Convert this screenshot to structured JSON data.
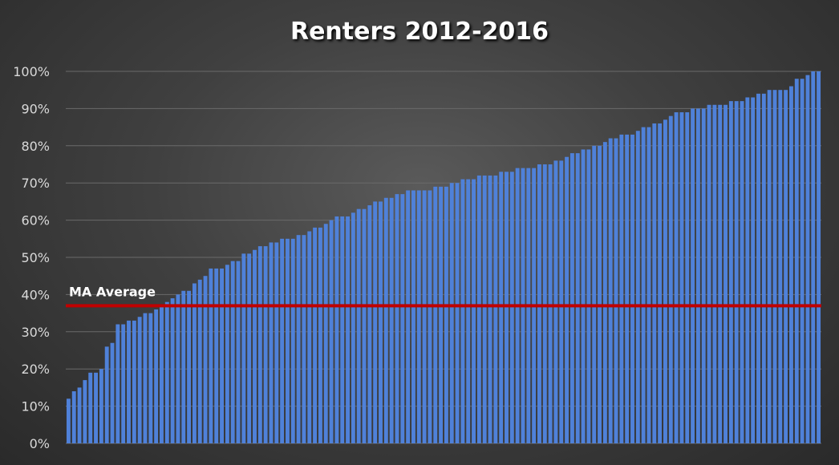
{
  "colors": {
    "bar": "#4f81d9",
    "bar_edge": "#3a66b3",
    "average_line": "#c00000",
    "grid": "#6a6a6a",
    "text": "#d9d9d9"
  },
  "chart_data": {
    "type": "bar",
    "title": "Renters 2012-2016",
    "xlabel": "",
    "ylabel": "",
    "ylim": [
      0,
      100
    ],
    "y_ticks": [
      0,
      10,
      20,
      30,
      40,
      50,
      60,
      70,
      80,
      90,
      100
    ],
    "y_tick_labels": [
      "0%",
      "10%",
      "20%",
      "30%",
      "40%",
      "50%",
      "60%",
      "70%",
      "80%",
      "90%",
      "100%"
    ],
    "grid": true,
    "values": [
      12,
      14,
      15,
      17,
      19,
      19,
      20,
      26,
      27,
      32,
      32,
      33,
      33,
      34,
      35,
      35,
      36,
      37,
      38,
      39,
      40,
      41,
      41,
      43,
      44,
      45,
      47,
      47,
      47,
      48,
      49,
      49,
      51,
      51,
      52,
      53,
      53,
      54,
      54,
      55,
      55,
      55,
      56,
      56,
      57,
      58,
      58,
      59,
      60,
      61,
      61,
      61,
      62,
      63,
      63,
      64,
      65,
      65,
      66,
      66,
      67,
      67,
      68,
      68,
      68,
      68,
      68,
      69,
      69,
      69,
      70,
      70,
      71,
      71,
      71,
      72,
      72,
      72,
      72,
      73,
      73,
      73,
      74,
      74,
      74,
      74,
      75,
      75,
      75,
      76,
      76,
      77,
      78,
      78,
      79,
      79,
      80,
      80,
      81,
      82,
      82,
      83,
      83,
      83,
      84,
      85,
      85,
      86,
      86,
      87,
      88,
      89,
      89,
      89,
      90,
      90,
      90,
      91,
      91,
      91,
      91,
      92,
      92,
      92,
      93,
      93,
      94,
      94,
      95,
      95,
      95,
      95,
      96,
      98,
      98,
      99,
      100,
      100
    ],
    "reference_line": {
      "label": "MA Average",
      "value": 37
    }
  }
}
